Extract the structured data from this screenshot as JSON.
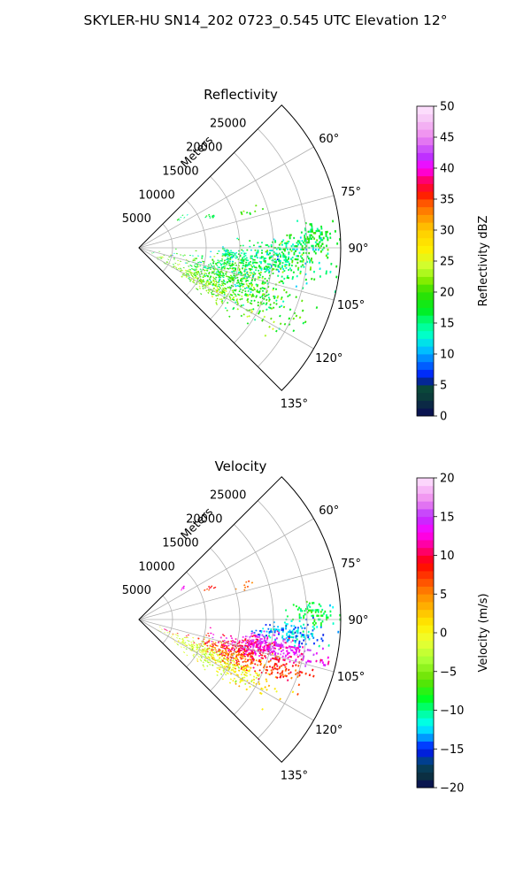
{
  "figure_title": "SKYLER-HU  SN14_202  0723_0.545 UTC Elevation 12°",
  "chart_data": [
    {
      "type": "heatmap",
      "subtype": "polar-sector (PPI)",
      "title": "Reflectivity",
      "radial_label": "Meters",
      "radial_ticks": [
        "5000",
        "10000",
        "15000",
        "20000",
        "25000"
      ],
      "radial_tick_values": [
        5000,
        10000,
        15000,
        20000,
        25000
      ],
      "range_max": 30000,
      "angle_ticks": [
        "60°",
        "75°",
        "90°",
        "105°",
        "120°",
        "135°"
      ],
      "angle_tick_values": [
        60,
        75,
        90,
        105,
        120,
        135
      ],
      "azimuth_range": [
        45,
        135
      ],
      "grid": true,
      "colorbar": {
        "label": "Reflectivity dBZ",
        "min": 0,
        "max": 50,
        "ticks": [
          "0",
          "5",
          "10",
          "15",
          "20",
          "25",
          "30",
          "35",
          "40",
          "45",
          "50"
        ],
        "stops": [
          [
            0,
            "#0a0a55"
          ],
          [
            3,
            "#0b3b3b"
          ],
          [
            5,
            "#0a4d3a"
          ],
          [
            6,
            "#0010cc"
          ],
          [
            7,
            "#0030ff"
          ],
          [
            9,
            "#0080ff"
          ],
          [
            11,
            "#00ccff"
          ],
          [
            13,
            "#00ffcc"
          ],
          [
            15,
            "#00ff88"
          ],
          [
            17,
            "#00ee22"
          ],
          [
            20,
            "#33e000"
          ],
          [
            22,
            "#88ee00"
          ],
          [
            24,
            "#ccff33"
          ],
          [
            27,
            "#ffee00"
          ],
          [
            30,
            "#ffcc00"
          ],
          [
            32,
            "#ff9900"
          ],
          [
            34,
            "#ff6600"
          ],
          [
            36,
            "#ff1100"
          ],
          [
            38,
            "#ff0066"
          ],
          [
            40,
            "#ff00ff"
          ],
          [
            42,
            "#bb33ff"
          ],
          [
            45,
            "#ee88ee"
          ],
          [
            48,
            "#f6c8f6"
          ],
          [
            50,
            "#ffe6ff"
          ]
        ]
      },
      "echo_cells": [
        {
          "azimuth": 112,
          "range": 15500,
          "az_spread": 6,
          "range_spread": 4500,
          "value": 19,
          "value_spread": 3,
          "count": 460
        },
        {
          "azimuth": 104,
          "range": 13500,
          "az_spread": 5,
          "range_spread": 3500,
          "value": 17,
          "value_spread": 3,
          "count": 260
        },
        {
          "azimuth": 97,
          "range": 19500,
          "az_spread": 4,
          "range_spread": 4000,
          "value": 16,
          "value_spread": 3,
          "count": 260
        },
        {
          "azimuth": 91,
          "range": 23000,
          "az_spread": 3,
          "range_spread": 3000,
          "value": 16,
          "value_spread": 3,
          "count": 170
        },
        {
          "azimuth": 86,
          "range": 26500,
          "az_spread": 2,
          "range_spread": 1500,
          "value": 17,
          "value_spread": 2,
          "count": 80
        },
        {
          "azimuth": 118,
          "range": 11000,
          "az_spread": 3,
          "range_spread": 3000,
          "value": 22,
          "value_spread": 2,
          "count": 220
        },
        {
          "azimuth": 93,
          "range": 13500,
          "az_spread": 1.5,
          "range_spread": 1000,
          "value": 14,
          "value_spread": 2,
          "count": 40
        },
        {
          "azimuth": 66,
          "range": 11500,
          "az_spread": 1,
          "range_spread": 500,
          "value": 17,
          "value_spread": 2,
          "count": 10
        },
        {
          "azimuth": 55,
          "range": 8000,
          "az_spread": 1,
          "range_spread": 500,
          "value": 16,
          "value_spread": 2,
          "count": 8
        },
        {
          "azimuth": 72,
          "range": 17000,
          "az_spread": 1,
          "range_spread": 800,
          "value": 20,
          "value_spread": 2,
          "count": 10
        },
        {
          "azimuth": 111,
          "range": 4000,
          "az_spread": 0.5,
          "range_spread": 300,
          "value": 25,
          "value_spread": 1,
          "count": 4
        }
      ]
    },
    {
      "type": "heatmap",
      "subtype": "polar-sector (PPI)",
      "title": "Velocity",
      "radial_label": "Meters",
      "radial_ticks": [
        "5000",
        "10000",
        "15000",
        "20000",
        "25000"
      ],
      "radial_tick_values": [
        5000,
        10000,
        15000,
        20000,
        25000
      ],
      "range_max": 30000,
      "angle_ticks": [
        "60°",
        "75°",
        "90°",
        "105°",
        "120°",
        "135°"
      ],
      "angle_tick_values": [
        60,
        75,
        90,
        105,
        120,
        135
      ],
      "azimuth_range": [
        45,
        135
      ],
      "grid": true,
      "colorbar": {
        "label": "Velocity (m/s)",
        "min": -20,
        "max": 20,
        "ticks": [
          "−20",
          "−15",
          "−10",
          "−5",
          "0",
          "5",
          "10",
          "15",
          "20"
        ],
        "stops": [
          [
            -20,
            "#0a0a55"
          ],
          [
            -18,
            "#0b3b3b"
          ],
          [
            -16.5,
            "#003f8f"
          ],
          [
            -15,
            "#0010ff"
          ],
          [
            -13.5,
            "#0099ff"
          ],
          [
            -12,
            "#00ffff"
          ],
          [
            -10.5,
            "#00ffaa"
          ],
          [
            -8.5,
            "#00ff22"
          ],
          [
            -6,
            "#66e000"
          ],
          [
            -3.5,
            "#aaff33"
          ],
          [
            -1,
            "#eeff33"
          ],
          [
            1,
            "#ffee00"
          ],
          [
            3,
            "#ffbb00"
          ],
          [
            5,
            "#ff8800"
          ],
          [
            7,
            "#ff4400"
          ],
          [
            9,
            "#ff0000"
          ],
          [
            11,
            "#ff0088"
          ],
          [
            13,
            "#ff00ff"
          ],
          [
            15,
            "#bb33ff"
          ],
          [
            17,
            "#ee88ee"
          ],
          [
            20,
            "#ffe6ff"
          ]
        ]
      },
      "echo_cells": [
        {
          "azimuth": 117,
          "range": 11500,
          "az_spread": 4,
          "range_spread": 3000,
          "value": -2,
          "value_spread": 1.5,
          "count": 300
        },
        {
          "azimuth": 110,
          "range": 15000,
          "az_spread": 3,
          "range_spread": 3000,
          "value": 7,
          "value_spread": 2,
          "count": 260
        },
        {
          "azimuth": 104,
          "range": 17500,
          "az_spread": 3,
          "range_spread": 3000,
          "value": 11,
          "value_spread": 1.5,
          "count": 240
        },
        {
          "azimuth": 102,
          "range": 22000,
          "az_spread": 2,
          "range_spread": 3500,
          "value": 14,
          "value_spread": 2,
          "count": 170
        },
        {
          "azimuth": 95,
          "range": 22500,
          "az_spread": 2,
          "range_spread": 2500,
          "value": -13,
          "value_spread": 1.5,
          "count": 150
        },
        {
          "azimuth": 88,
          "range": 26000,
          "az_spread": 2,
          "range_spread": 1800,
          "value": -9,
          "value_spread": 1.5,
          "count": 90
        },
        {
          "azimuth": 118,
          "range": 17000,
          "az_spread": 3,
          "range_spread": 3000,
          "value": 1,
          "value_spread": 1.5,
          "count": 120
        },
        {
          "azimuth": 109,
          "range": 22500,
          "az_spread": 2,
          "range_spread": 2500,
          "value": 8,
          "value_spread": 1.5,
          "count": 80
        },
        {
          "azimuth": 99,
          "range": 19000,
          "az_spread": 1.5,
          "range_spread": 1500,
          "value": 15,
          "value_spread": 1,
          "count": 40
        },
        {
          "azimuth": 66,
          "range": 11500,
          "az_spread": 1,
          "range_spread": 500,
          "value": 8,
          "value_spread": 1,
          "count": 10
        },
        {
          "azimuth": 55,
          "range": 8000,
          "az_spread": 1,
          "range_spread": 500,
          "value": 13,
          "value_spread": 1,
          "count": 8
        },
        {
          "azimuth": 72,
          "range": 17000,
          "az_spread": 1,
          "range_spread": 800,
          "value": 6,
          "value_spread": 1,
          "count": 8
        },
        {
          "azimuth": 111,
          "range": 4000,
          "az_spread": 0.5,
          "range_spread": 300,
          "value": 12,
          "value_spread": 1,
          "count": 4
        }
      ]
    }
  ]
}
